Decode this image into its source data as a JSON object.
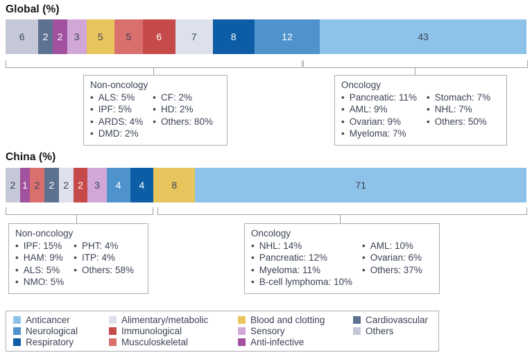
{
  "chart_data": [
    {
      "type": "bar",
      "title": "Global (%)",
      "orientation": "horizontal",
      "stacked": true,
      "unit": "%",
      "segments": [
        {
          "category": "Others",
          "value": 6,
          "color": "#c5c9d7",
          "label_color": "#3b4254"
        },
        {
          "category": "Cardiovascular",
          "value": 2,
          "color": "#5d7191",
          "label_color": "#ffffff"
        },
        {
          "category": "Anti-infective",
          "value": 2,
          "color": "#a1519d",
          "label_color": "#ffffff"
        },
        {
          "category": "Sensory",
          "value": 3,
          "color": "#d0a7d7",
          "label_color": "#3b4254"
        },
        {
          "category": "Blood and clotting",
          "value": 5,
          "color": "#e8c45c",
          "label_color": "#3b4254"
        },
        {
          "category": "Musculoskeletal",
          "value": 5,
          "color": "#d9706e",
          "label_color": "#3b4254"
        },
        {
          "category": "Immunological",
          "value": 6,
          "color": "#c64a49",
          "label_color": "#ffffff"
        },
        {
          "category": "Alimentary/metabolic",
          "value": 7,
          "color": "#dde1ec",
          "label_color": "#3b4254"
        },
        {
          "category": "Respiratory",
          "value": 8,
          "color": "#0d5ca6",
          "label_color": "#ffffff"
        },
        {
          "category": "Neurological",
          "value": 12,
          "color": "#4f93cd",
          "label_color": "#ffffff"
        },
        {
          "category": "Anticancer",
          "value": 43,
          "color": "#8dc3e8",
          "label_color": "#3b4254"
        }
      ],
      "annotations": {
        "non_oncology": {
          "title": "Non-oncology",
          "col1": [
            "ALS: 5%",
            "IPF: 5%",
            "ARDS: 4%",
            "DMD: 2%"
          ],
          "col2": [
            "CF: 2%",
            "HD: 2%",
            "Others: 80%"
          ]
        },
        "oncology": {
          "title": "Oncology",
          "col1": [
            "Pancreatic: 11%",
            "AML: 9%",
            "Ovarian: 9%",
            "Myeloma: 7%"
          ],
          "col2": [
            "Stomach: 7%",
            "NHL: 7%",
            "Others: 50%"
          ]
        }
      }
    },
    {
      "type": "bar",
      "title": "China (%)",
      "orientation": "horizontal",
      "stacked": true,
      "unit": "%",
      "segments": [
        {
          "category": "Others",
          "value": 2,
          "color": "#c5c9d7",
          "label_color": "#3b4254"
        },
        {
          "category": "Anti-infective",
          "value": 1,
          "color": "#a1519d",
          "label_color": "#ffffff"
        },
        {
          "category": "Musculoskeletal",
          "value": 2,
          "color": "#d9706e",
          "label_color": "#3b4254"
        },
        {
          "category": "Cardiovascular",
          "value": 2,
          "color": "#5d7191",
          "label_color": "#ffffff"
        },
        {
          "category": "Alimentary/metabolic",
          "value": 2,
          "color": "#dde1ec",
          "label_color": "#3b4254"
        },
        {
          "category": "Immunological",
          "value": 2,
          "color": "#c64a49",
          "label_color": "#ffffff"
        },
        {
          "category": "Sensory",
          "value": 3,
          "color": "#d0a7d7",
          "label_color": "#3b4254"
        },
        {
          "category": "Neurological",
          "value": 4,
          "color": "#4f93cd",
          "label_color": "#ffffff"
        },
        {
          "category": "Respiratory",
          "value": 4,
          "color": "#0d5ca6",
          "label_color": "#ffffff"
        },
        {
          "category": "Blood and clotting",
          "value": 8,
          "color": "#e8c45c",
          "label_color": "#3b4254"
        },
        {
          "category": "Anticancer",
          "value": 71,
          "color": "#8dc3e8",
          "label_color": "#3b4254"
        }
      ],
      "annotations": {
        "non_oncology": {
          "title": "Non-oncology",
          "col1": [
            "IPF: 15%",
            "HAM: 9%",
            "ALS: 5%",
            "NMO: 5%"
          ],
          "col2": [
            "PHT: 4%",
            "ITP: 4%",
            "Others: 58%"
          ]
        },
        "oncology": {
          "title": "Oncology",
          "col1": [
            "NHL: 14%",
            "Pancreatic: 12%",
            "Myeloma: 11%",
            "B-cell lymphoma: 10%"
          ],
          "col2": [
            "AML: 10%",
            "Ovarian: 6%",
            "Others: 37%"
          ]
        }
      }
    }
  ],
  "legend": {
    "items": [
      {
        "label": "Anticancer",
        "color": "#8dc3e8"
      },
      {
        "label": "Neurological",
        "color": "#4f93cd"
      },
      {
        "label": "Respiratory",
        "color": "#0d5ca6"
      },
      {
        "label": "Alimentary/metabolic",
        "color": "#dde1ec"
      },
      {
        "label": "Immunological",
        "color": "#c64a49"
      },
      {
        "label": "Musculoskeletal",
        "color": "#d9706e"
      },
      {
        "label": "Blood and clotting",
        "color": "#e8c45c"
      },
      {
        "label": "Sensory",
        "color": "#d0a7d7"
      },
      {
        "label": "Anti-infective",
        "color": "#a1519d"
      },
      {
        "label": "Cardiovascular",
        "color": "#5d7191"
      },
      {
        "label": "Others",
        "color": "#c5c9d7"
      }
    ]
  }
}
